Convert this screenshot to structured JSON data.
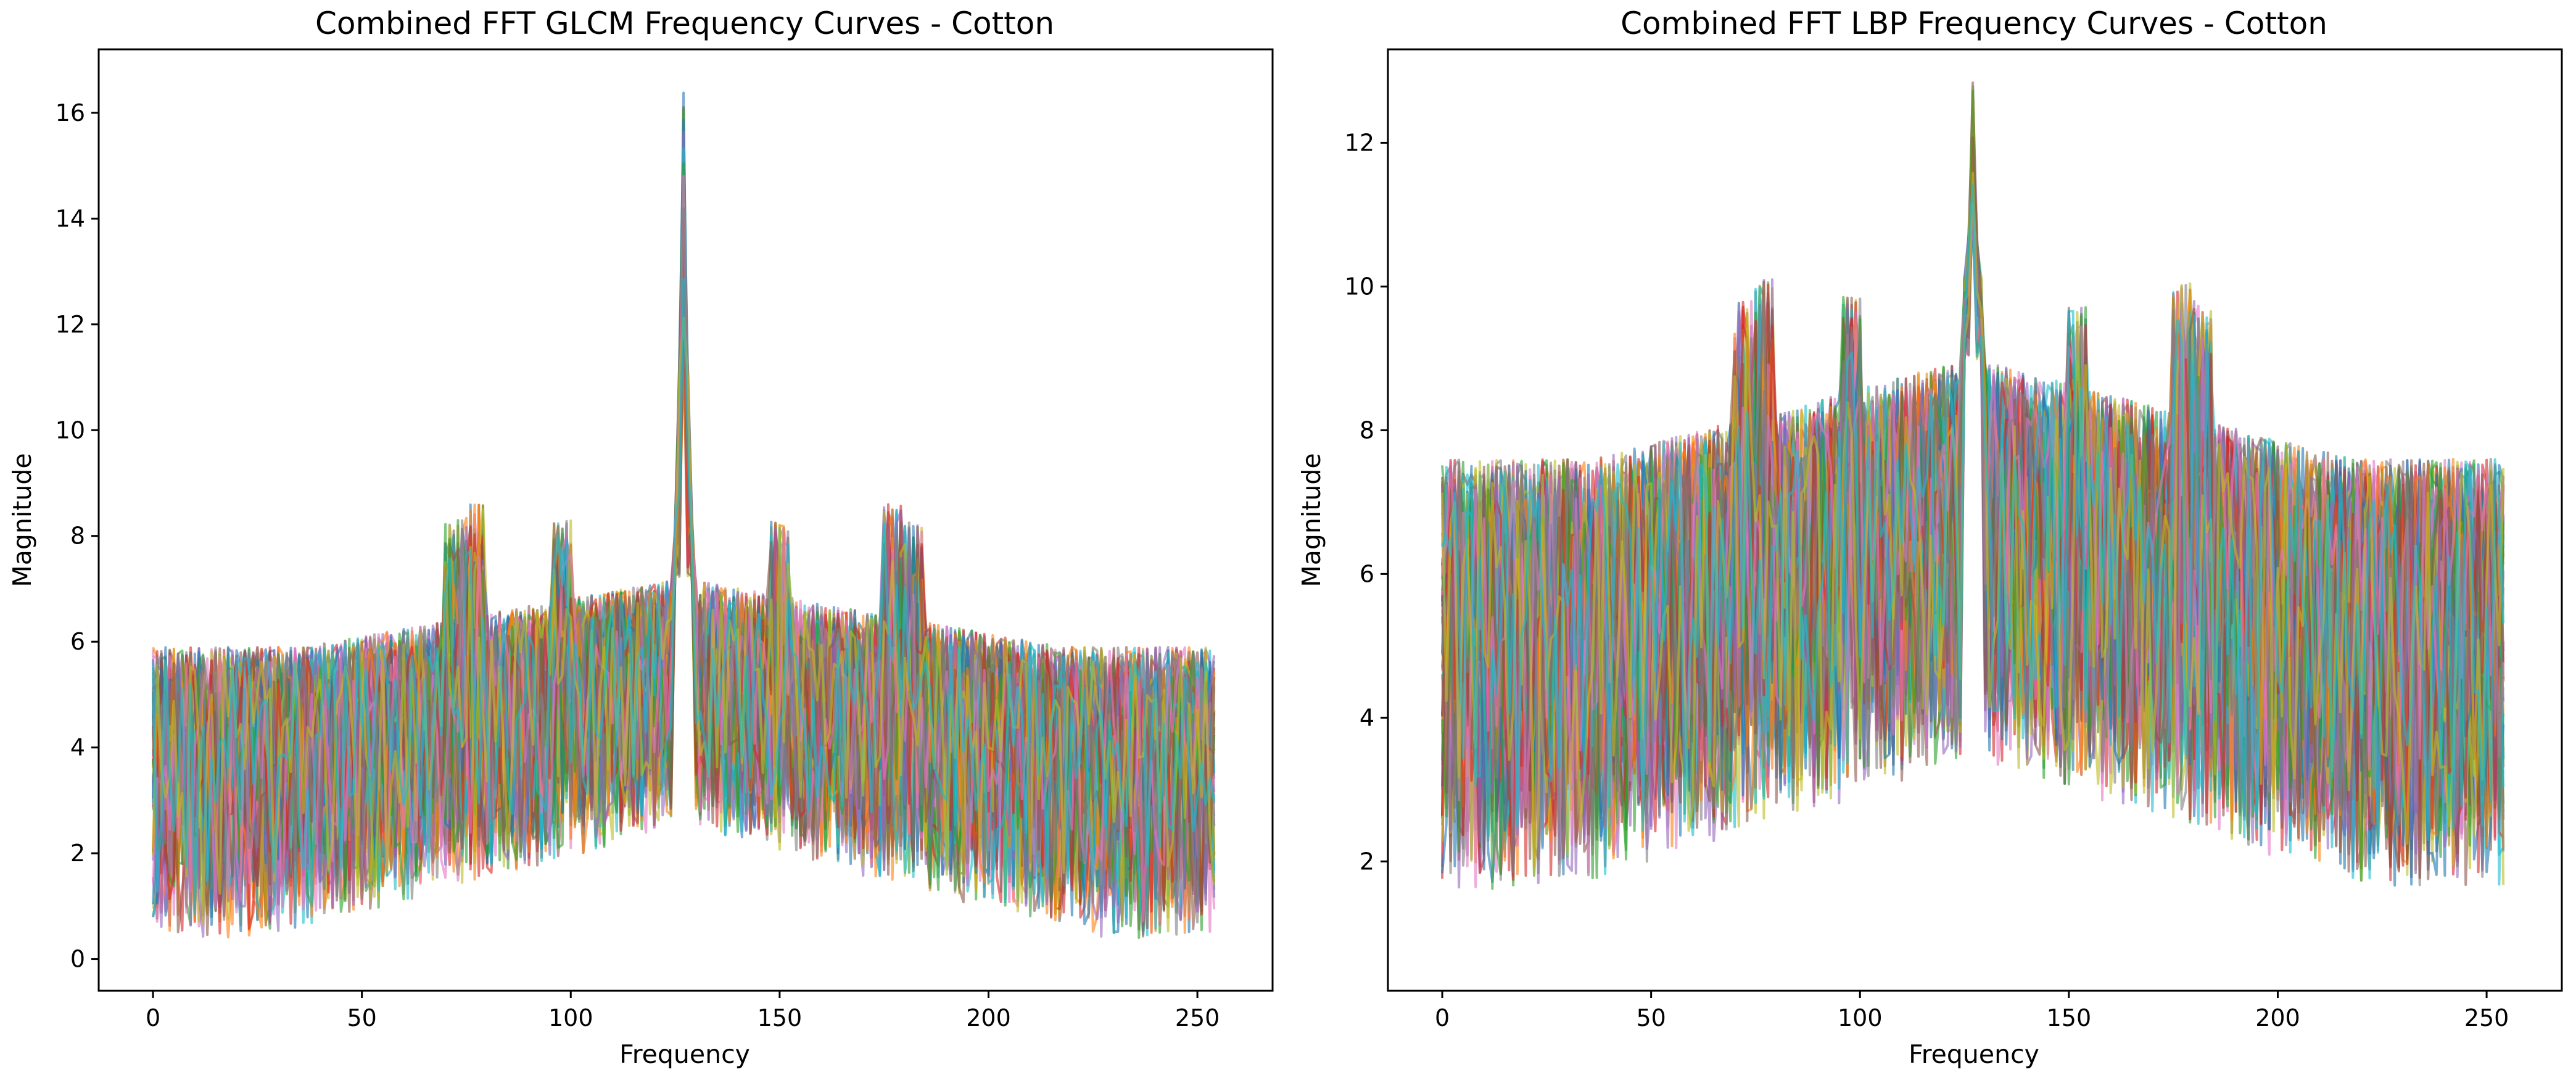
{
  "chart_data": [
    {
      "type": "line",
      "title": "Combined FFT GLCM Frequency Curves - Cotton",
      "xlabel": "Frequency",
      "ylabel": "Magnitude",
      "xlim": [
        -13,
        268
      ],
      "ylim": [
        -0.6,
        17.2
      ],
      "xticks": [
        0,
        50,
        100,
        150,
        200,
        250
      ],
      "xtick_labels": [
        "0",
        "50",
        "100",
        "150",
        "200",
        "250"
      ],
      "yticks": [
        0,
        2,
        4,
        6,
        8,
        10,
        12,
        14,
        16
      ],
      "ytick_labels": [
        "0",
        "2",
        "4",
        "6",
        "8",
        "10",
        "12",
        "14",
        "16"
      ],
      "grid": false,
      "legend": "none",
      "n_points": 255,
      "series_count": 60,
      "band": {
        "floor_low": 0.4,
        "floor_high": 2.5,
        "top_edge": 5.9,
        "top_center": 7.2,
        "peak_center": 127,
        "peak_max": 16.4,
        "secondary_peaks": [
          {
            "x": 72,
            "y": 8.3
          },
          {
            "x": 77,
            "y": 8.6
          },
          {
            "x": 98,
            "y": 8.3
          },
          {
            "x": 150,
            "y": 8.3
          },
          {
            "x": 177,
            "y": 8.6
          },
          {
            "x": 182,
            "y": 8.3
          }
        ]
      }
    },
    {
      "type": "line",
      "title": "Combined FFT LBP Frequency Curves - Cotton",
      "xlabel": "Frequency",
      "ylabel": "Magnitude",
      "xlim": [
        -13,
        268
      ],
      "ylim": [
        0.2,
        13.3
      ],
      "xticks": [
        0,
        50,
        100,
        150,
        200,
        250
      ],
      "xtick_labels": [
        "0",
        "50",
        "100",
        "150",
        "200",
        "250"
      ],
      "yticks": [
        2,
        4,
        6,
        8,
        10,
        12
      ],
      "ytick_labels": [
        "2",
        "4",
        "6",
        "8",
        "10",
        "12"
      ],
      "grid": false,
      "legend": "none",
      "n_points": 255,
      "series_count": 60,
      "band": {
        "floor_low": 1.6,
        "floor_high": 3.4,
        "top_edge": 7.6,
        "top_center": 9.0,
        "peak_center": 127,
        "peak_max": 12.9,
        "secondary_peaks": [
          {
            "x": 72,
            "y": 9.8
          },
          {
            "x": 77,
            "y": 10.1
          },
          {
            "x": 98,
            "y": 9.9
          },
          {
            "x": 152,
            "y": 9.8
          },
          {
            "x": 177,
            "y": 10.1
          },
          {
            "x": 182,
            "y": 9.8
          }
        ]
      }
    }
  ],
  "colors": {
    "palette": [
      "#1f77b4",
      "#ff7f0e",
      "#2ca02c",
      "#d62728",
      "#9467bd",
      "#8c564b",
      "#e377c2",
      "#7f7f7f",
      "#bcbd22",
      "#17becf"
    ]
  }
}
